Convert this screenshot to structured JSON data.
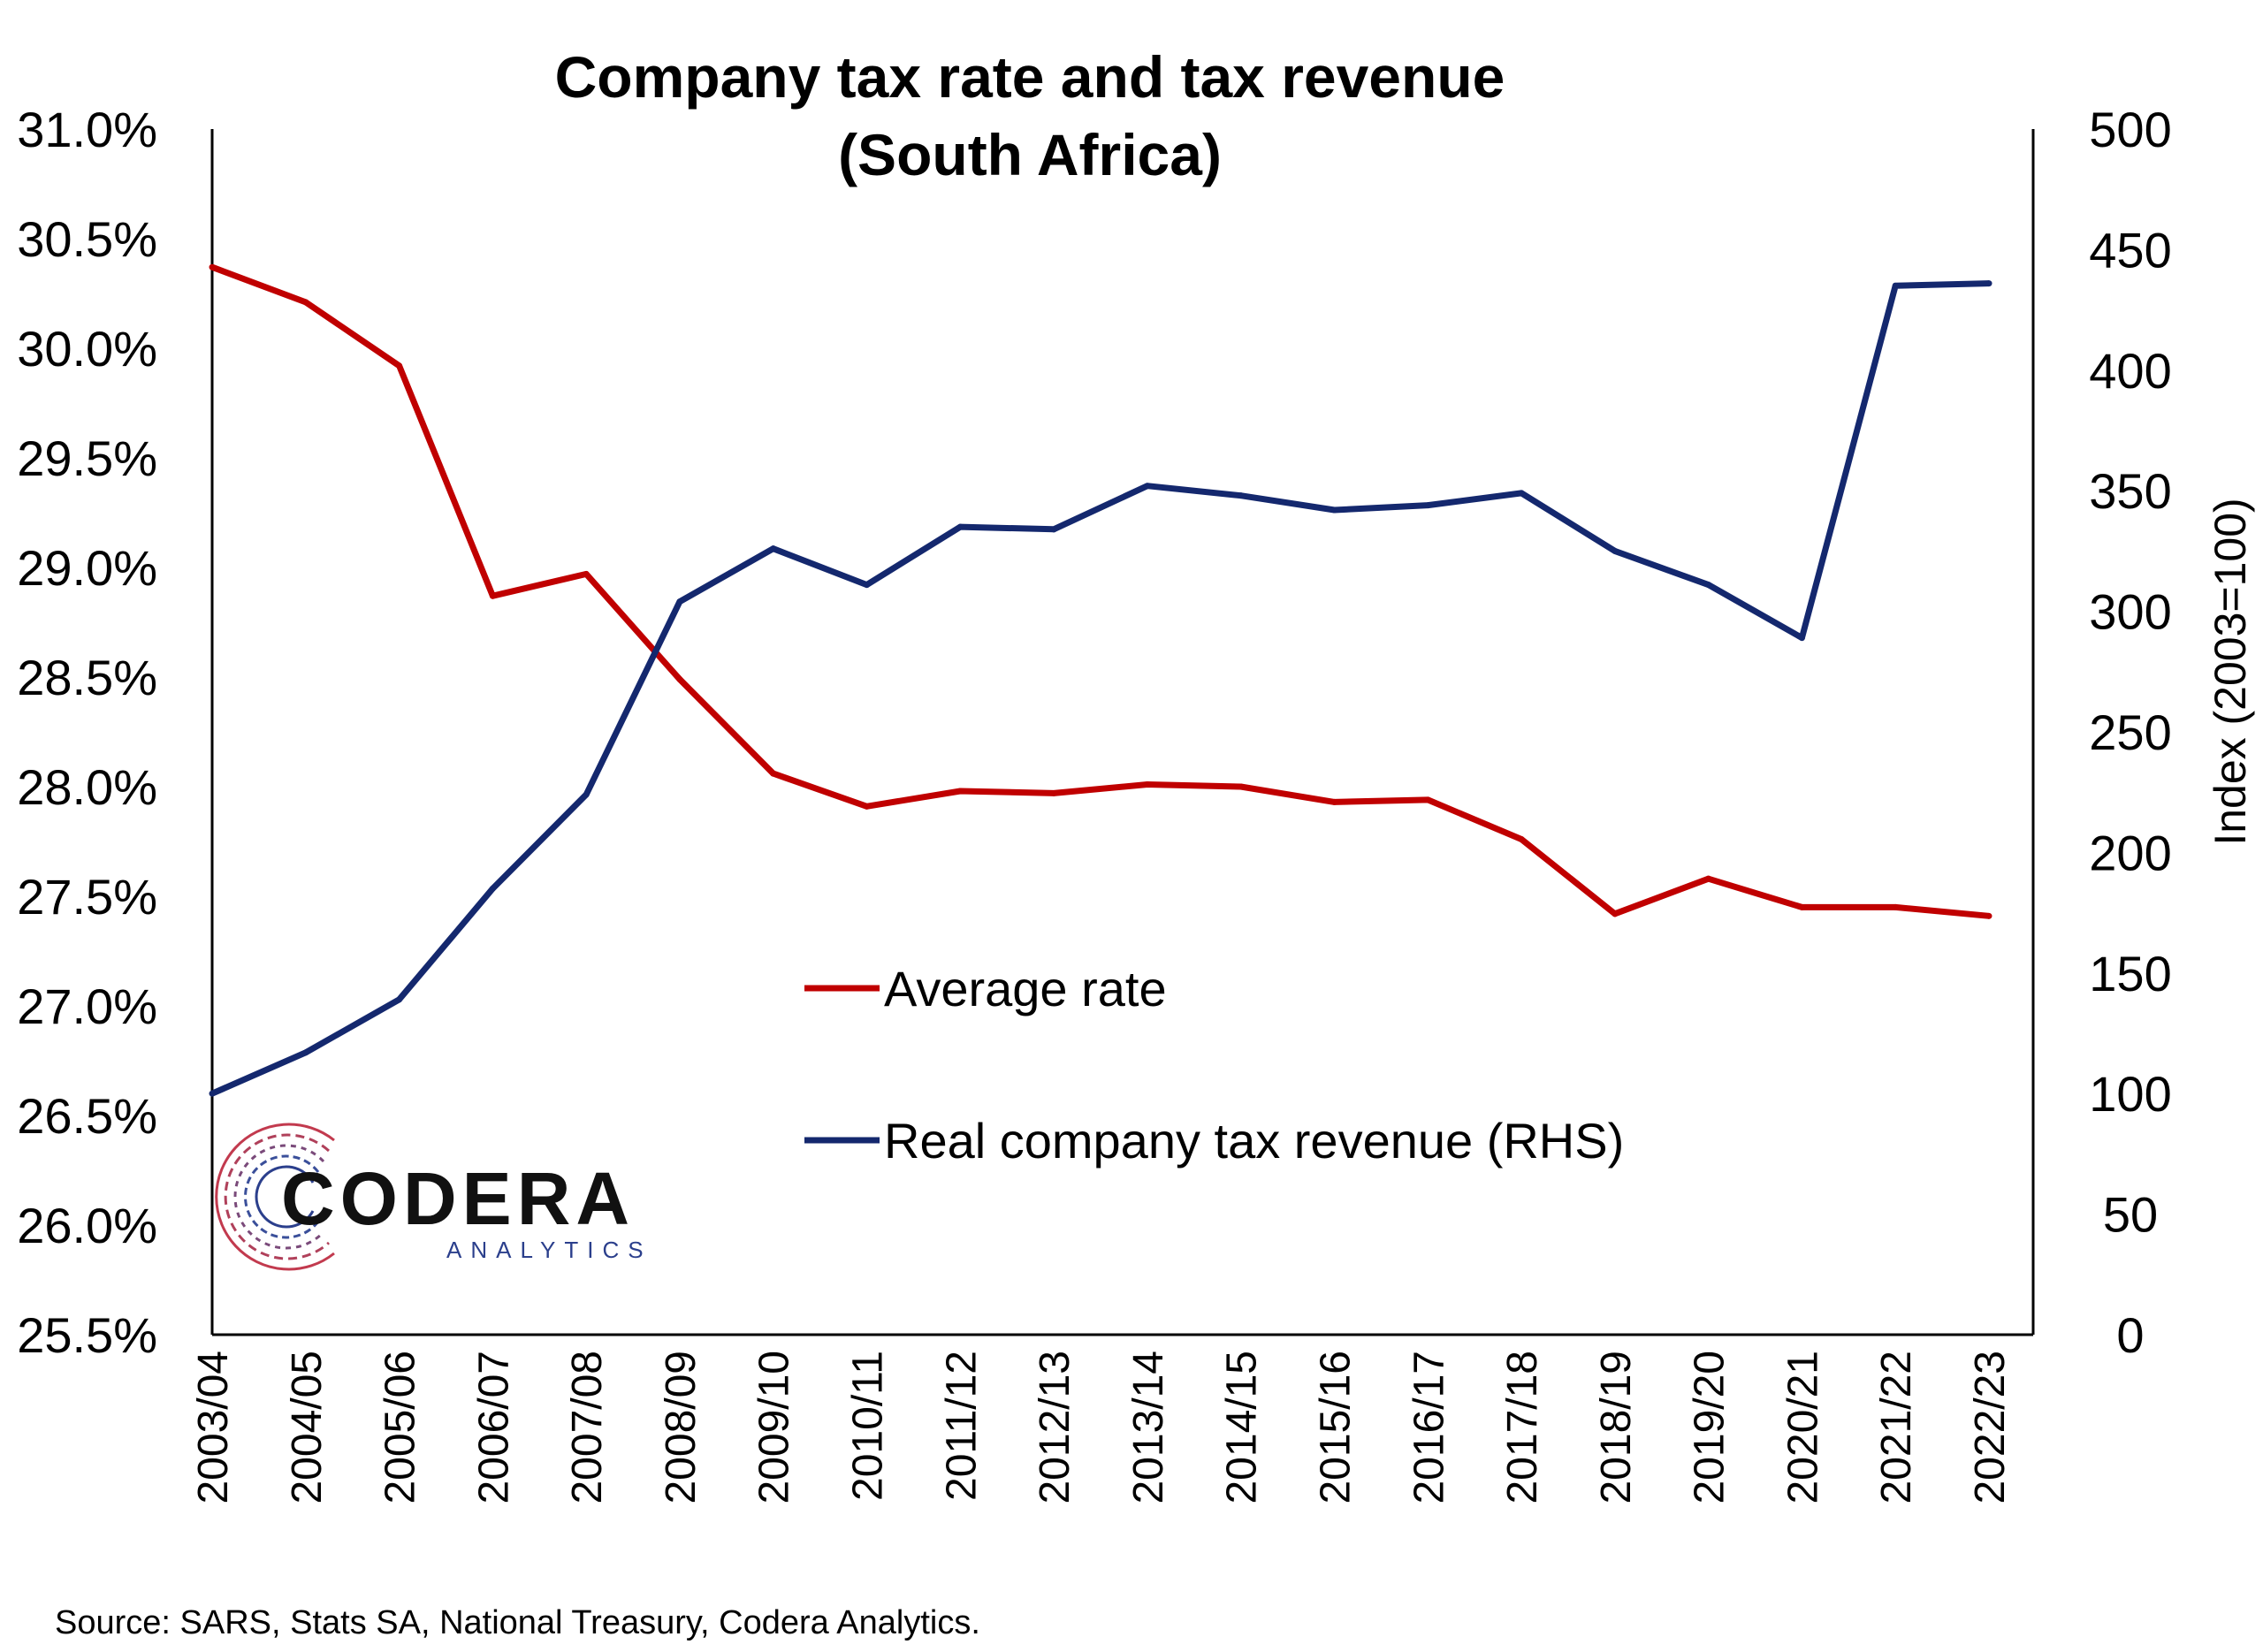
{
  "chart_data": {
    "type": "line",
    "title_lines": [
      "Company tax rate and tax revenue",
      "(South Africa)"
    ],
    "categories": [
      "2003/04",
      "2004/05",
      "2005/06",
      "2006/07",
      "2007/08",
      "2008/09",
      "2009/10",
      "2010/11",
      "2011/12",
      "2012/13",
      "2013/14",
      "2014/15",
      "2015/16",
      "2016/17",
      "2017/18",
      "2018/19",
      "2019/20",
      "2020/21",
      "2021/22",
      "2022/23"
    ],
    "y_left": {
      "min": 25.5,
      "max": 31.0,
      "ticks": [
        "25.5%",
        "26.0%",
        "26.5%",
        "27.0%",
        "27.5%",
        "28.0%",
        "28.5%",
        "29.0%",
        "29.5%",
        "30.0%",
        "30.5%",
        "31.0%"
      ]
    },
    "y_right": {
      "min": 0,
      "max": 500,
      "label": "Index (2003=100)",
      "ticks": [
        "0",
        "50",
        "100",
        "150",
        "200",
        "250",
        "300",
        "350",
        "400",
        "450",
        "500"
      ]
    },
    "series": [
      {
        "name": "Average rate",
        "axis": "left",
        "color": "#c00000",
        "values": [
          30.37,
          30.21,
          29.92,
          28.87,
          28.97,
          28.49,
          28.06,
          27.91,
          27.98,
          27.97,
          28.01,
          28.0,
          27.93,
          27.94,
          27.76,
          27.42,
          27.58,
          27.45,
          27.45,
          27.41
        ]
      },
      {
        "name": "Real company tax revenue (RHS)",
        "axis": "right",
        "color": "#14286e",
        "values": [
          100,
          117,
          139,
          185,
          224,
          304,
          326,
          311,
          335,
          334,
          352,
          348,
          342,
          344,
          349,
          325,
          311,
          289,
          435,
          436
        ]
      }
    ],
    "legend_position": "center"
  },
  "source": "Source: SARS, Stats SA, National Treasury, Codera Analytics.",
  "logo": {
    "name": "CODERA",
    "tagline": "ANALYTICS"
  }
}
